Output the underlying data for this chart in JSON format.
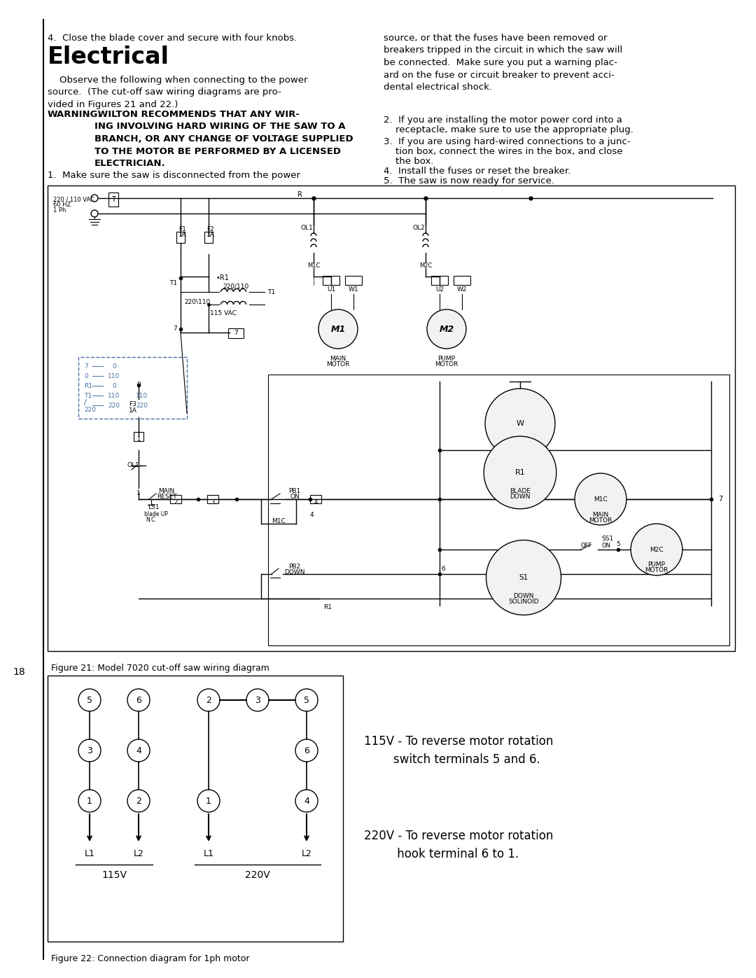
{
  "bg_color": "#ffffff",
  "text_color": "#000000",
  "page_number": "18",
  "title": "Electrical",
  "item4_header": "4.  Close the blade cover and secure with four knobs.",
  "warning_label": "WARNING:",
  "warning_body": " WILTON RECOMMENDS THAT ANY WIR-\nING INVOLVING HARD WIRING OF THE SAW TO A\nBRANCH, OR ANY CHANGE OF VOLTAGE SUPPLIED\nTO THE MOTOR BE PERFORMED BY A LICENSED\nELECTRICIAN.",
  "intro_text": "    Observe the following when connecting to the power\nsource.  (The cut-off saw wiring diagrams are pro-\nvided in Figures 21 and 22.)",
  "item1": "1.  Make sure the saw is disconnected from the power",
  "right_para1": "source, or that the fuses have been removed or\nbreakers tripped in the circuit in which the saw will\nbe connected.  Make sure you put a warning plac-\nard on the fuse or circuit breaker to prevent acci-\ndental electrical shock.",
  "item2_line1": "2.  If you are installing the motor power cord into a",
  "item2_line2": "    receptacle, make sure to use the appropriate plug.",
  "item3_line1": "3.  If you are using hard-wired connections to a junc-",
  "item3_line2": "    tion box, connect the wires in the box, and close",
  "item3_line3": "    the box.",
  "item4b": "4.  Install the fuses or reset the breaker.",
  "item5": "5.  The saw is now ready for service.",
  "fig21_caption": "Figure 21: Model 7020 cut-off saw wiring diagram",
  "fig22_caption": "Figure 22: Connection diagram for 1ph motor",
  "text_115v": "115V - To reverse motor rotation\n        switch terminals 5 and 6.",
  "text_220v": "220V - To reverse motor rotation\n         hook terminal 6 to 1.",
  "blue_color": "#4A6FA5",
  "line_gray": "#999999"
}
